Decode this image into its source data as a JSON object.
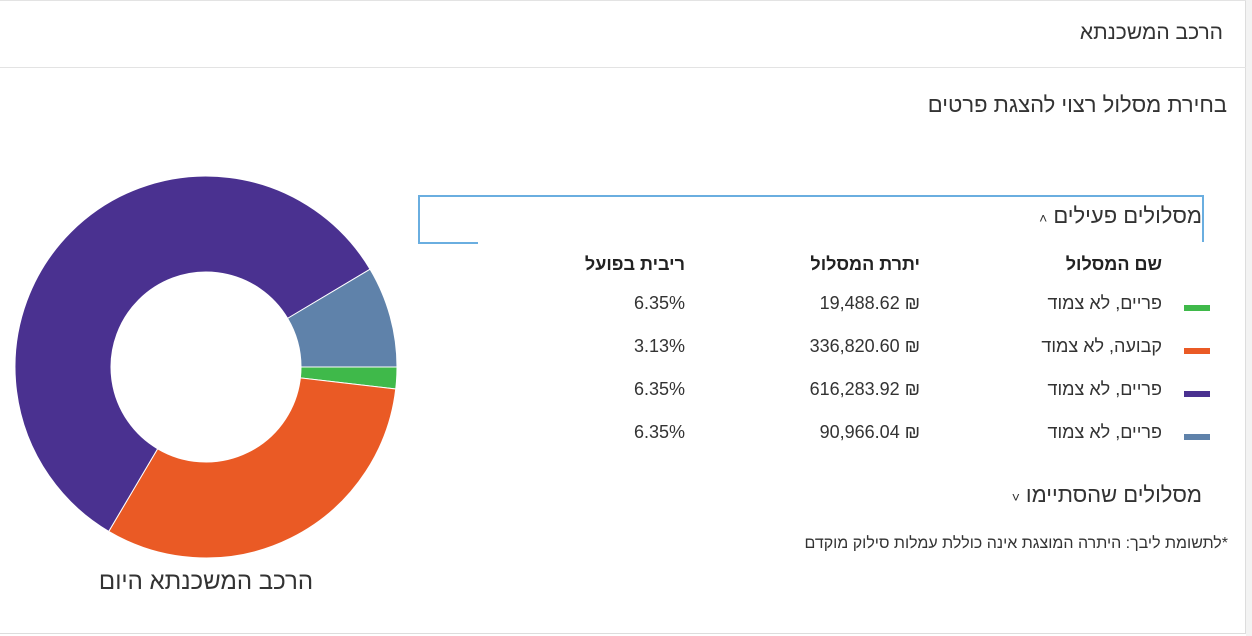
{
  "header": {
    "title": "הרכב המשכנתא"
  },
  "subtitle": "בחירת מסלול רצוי להצגת פרטים",
  "active_section": {
    "title": "מסלולים פעילים",
    "chevron": "˄"
  },
  "columns": {
    "name": "שם המסלול",
    "balance": "יתרת המסלול",
    "rate": "ריבית בפועל"
  },
  "rows": [
    {
      "name": "פריים, לא צמוד",
      "balance": "₪ 19,488.62",
      "rate": "6.35%",
      "color": "#3fb94a"
    },
    {
      "name": "קבועה, לא צמוד",
      "balance": "₪ 336,820.60",
      "rate": "3.13%",
      "color": "#ea5a25"
    },
    {
      "name": "פריים, לא צמוד",
      "balance": "₪ 616,283.92",
      "rate": "6.35%",
      "color": "#4a3190"
    },
    {
      "name": "פריים, לא צמוד",
      "balance": "₪ 90,966.04",
      "rate": "6.35%",
      "color": "#5f82aa"
    }
  ],
  "ended_section": {
    "title": "מסלולים שהסתיימו",
    "chevron": "˅"
  },
  "note": "*לתשומת ליבך: היתרה המוצגת אינה כוללת עמלות סילוק מוקדם",
  "chart_data": {
    "type": "pie",
    "title": "הרכב המשכנתא היום",
    "categories": [
      "פריים, לא צמוד",
      "קבועה, לא צמוד",
      "פריים, לא צמוד",
      "פריים, לא צמוד"
    ],
    "values": [
      19488.62,
      336820.6,
      616283.92,
      90966.04
    ],
    "colors": [
      "#3fb94a",
      "#ea5a25",
      "#4a3190",
      "#5f82aa"
    ]
  }
}
